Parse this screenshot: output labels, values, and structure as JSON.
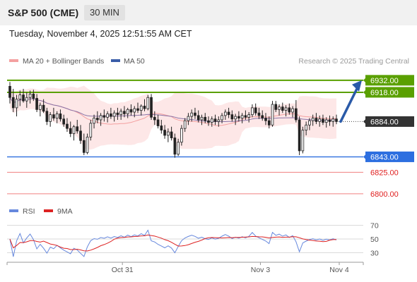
{
  "header": {
    "symbol": "S&P 500 (CME)",
    "interval": "30 MIN"
  },
  "datetime": "Tuesday, November 4, 2025 12:51:55 AM CET",
  "legend": [
    {
      "label": "MA 20 + Bollinger Bands",
      "color": "#f4a0a0"
    },
    {
      "label": "MA 50",
      "color": "#3a5da8"
    }
  ],
  "copyright": "Research © 2025 Trading Central",
  "rsi_legend": [
    {
      "label": "RSI",
      "color": "#6688dd"
    },
    {
      "label": "9MA",
      "color": "#dd2222"
    }
  ],
  "chart_data": {
    "type": "candlestick",
    "price_range": [
      6795,
      6945
    ],
    "current_price": {
      "value": 6884.0,
      "label": "6884.00"
    },
    "levels": [
      {
        "value": 6932.0,
        "label": "6932.00",
        "kind": "resistance",
        "color": "#5aa000"
      },
      {
        "value": 6918.0,
        "label": "6918.00",
        "kind": "resistance",
        "color": "#5aa000"
      },
      {
        "value": 6843.0,
        "label": "6843.00",
        "kind": "pivot",
        "color": "#3a78e0"
      },
      {
        "value": 6825.0,
        "label": "6825.00",
        "kind": "support",
        "color": "#e02020"
      },
      {
        "value": 6800.0,
        "label": "6800.00",
        "kind": "support",
        "color": "#e02020"
      }
    ],
    "forecast_arrow": {
      "from": 6884,
      "to": 6932
    },
    "x_ticks": [
      "Oct 31",
      "Nov 3",
      "Nov 4"
    ],
    "rsi": {
      "ticks": [
        70,
        50,
        30
      ],
      "range": [
        20,
        80
      ]
    },
    "ohlc": [
      [
        6925,
        6930,
        6905,
        6912
      ],
      [
        6912,
        6922,
        6895,
        6900
      ],
      [
        6900,
        6915,
        6890,
        6910
      ],
      [
        6910,
        6920,
        6902,
        6915
      ],
      [
        6915,
        6922,
        6906,
        6908
      ],
      [
        6908,
        6918,
        6900,
        6912
      ],
      [
        6912,
        6920,
        6905,
        6916
      ],
      [
        6916,
        6921,
        6908,
        6911
      ],
      [
        6911,
        6916,
        6895,
        6898
      ],
      [
        6898,
        6906,
        6890,
        6903
      ],
      [
        6903,
        6910,
        6894,
        6896
      ],
      [
        6896,
        6900,
        6880,
        6884
      ],
      [
        6884,
        6895,
        6878,
        6892
      ],
      [
        6892,
        6900,
        6885,
        6888
      ],
      [
        6888,
        6896,
        6882,
        6893
      ],
      [
        6893,
        6898,
        6884,
        6887
      ],
      [
        6887,
        6892,
        6878,
        6881
      ],
      [
        6881,
        6888,
        6872,
        6876
      ],
      [
        6876,
        6884,
        6866,
        6870
      ],
      [
        6870,
        6880,
        6862,
        6878
      ],
      [
        6878,
        6886,
        6870,
        6873
      ],
      [
        6873,
        6880,
        6858,
        6862
      ],
      [
        6862,
        6870,
        6845,
        6848
      ],
      [
        6848,
        6870,
        6846,
        6866
      ],
      [
        6866,
        6886,
        6862,
        6882
      ],
      [
        6882,
        6892,
        6876,
        6888
      ],
      [
        6888,
        6896,
        6882,
        6886
      ],
      [
        6886,
        6894,
        6879,
        6891
      ],
      [
        6891,
        6898,
        6884,
        6889
      ],
      [
        6889,
        6896,
        6883,
        6893
      ],
      [
        6893,
        6900,
        6887,
        6890
      ],
      [
        6890,
        6897,
        6884,
        6894
      ],
      [
        6894,
        6900,
        6886,
        6892
      ],
      [
        6892,
        6899,
        6886,
        6896
      ],
      [
        6896,
        6902,
        6889,
        6893
      ],
      [
        6893,
        6900,
        6888,
        6898
      ],
      [
        6898,
        6904,
        6891,
        6895
      ],
      [
        6895,
        6902,
        6889,
        6899
      ],
      [
        6899,
        6906,
        6894,
        6897
      ],
      [
        6897,
        6904,
        6891,
        6902
      ],
      [
        6902,
        6910,
        6896,
        6899
      ],
      [
        6899,
        6915,
        6897,
        6912
      ],
      [
        6912,
        6916,
        6886,
        6889
      ],
      [
        6889,
        6896,
        6880,
        6886
      ],
      [
        6886,
        6892,
        6876,
        6879
      ],
      [
        6879,
        6886,
        6870,
        6874
      ],
      [
        6874,
        6880,
        6864,
        6868
      ],
      [
        6868,
        6876,
        6860,
        6872
      ],
      [
        6872,
        6878,
        6862,
        6865
      ],
      [
        6865,
        6870,
        6842,
        6846
      ],
      [
        6846,
        6864,
        6844,
        6860
      ],
      [
        6860,
        6880,
        6856,
        6876
      ],
      [
        6876,
        6888,
        6872,
        6885
      ],
      [
        6885,
        6894,
        6880,
        6890
      ],
      [
        6890,
        6898,
        6884,
        6894
      ],
      [
        6894,
        6900,
        6887,
        6891
      ],
      [
        6891,
        6897,
        6883,
        6886
      ],
      [
        6886,
        6892,
        6880,
        6889
      ],
      [
        6889,
        6894,
        6882,
        6885
      ],
      [
        6885,
        6890,
        6879,
        6883
      ],
      [
        6883,
        6890,
        6878,
        6887
      ],
      [
        6887,
        6892,
        6880,
        6884
      ],
      [
        6884,
        6890,
        6878,
        6886
      ],
      [
        6886,
        6894,
        6882,
        6891
      ],
      [
        6891,
        6898,
        6886,
        6895
      ],
      [
        6895,
        6900,
        6888,
        6892
      ],
      [
        6892,
        6897,
        6884,
        6887
      ],
      [
        6887,
        6893,
        6880,
        6890
      ],
      [
        6890,
        6896,
        6884,
        6888
      ],
      [
        6888,
        6894,
        6882,
        6891
      ],
      [
        6891,
        6897,
        6886,
        6889
      ],
      [
        6889,
        6895,
        6883,
        6892
      ],
      [
        6892,
        6904,
        6889,
        6900
      ],
      [
        6900,
        6905,
        6891,
        6894
      ],
      [
        6894,
        6900,
        6887,
        6891
      ],
      [
        6891,
        6897,
        6885,
        6888
      ],
      [
        6888,
        6894,
        6880,
        6885
      ],
      [
        6885,
        6890,
        6876,
        6880
      ],
      [
        6880,
        6908,
        6878,
        6904
      ],
      [
        6904,
        6908,
        6895,
        6898
      ],
      [
        6898,
        6904,
        6891,
        6901
      ],
      [
        6901,
        6906,
        6894,
        6897
      ],
      [
        6897,
        6903,
        6890,
        6900
      ],
      [
        6900,
        6905,
        6892,
        6895
      ],
      [
        6895,
        6902,
        6889,
        6899
      ],
      [
        6899,
        6909,
        6883,
        6886
      ],
      [
        6886,
        6890,
        6845,
        6850
      ],
      [
        6850,
        6878,
        6847,
        6874
      ],
      [
        6874,
        6884,
        6868,
        6880
      ],
      [
        6880,
        6888,
        6874,
        6885
      ],
      [
        6885,
        6892,
        6879,
        6888
      ],
      [
        6888,
        6894,
        6881,
        6884
      ],
      [
        6884,
        6891,
        6878,
        6887
      ],
      [
        6887,
        6892,
        6880,
        6883
      ],
      [
        6883,
        6889,
        6877,
        6886
      ],
      [
        6886,
        6891,
        6879,
        6884
      ],
      [
        6884,
        6890,
        6878,
        6887
      ],
      [
        6887,
        6892,
        6881,
        6884
      ]
    ]
  }
}
